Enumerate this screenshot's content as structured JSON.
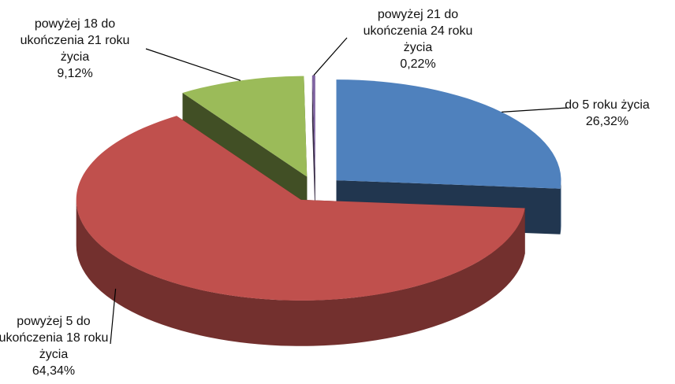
{
  "chart_data": {
    "type": "pie3d",
    "categories": [
      "do 5 roku życia",
      "powyżej 5 do ukończenia 18 roku życia",
      "powyżej 18 do ukończenia 21 roku życia",
      "powyżej 21 do ukończenia 24 roku życia"
    ],
    "values": [
      26.32,
      64.34,
      9.12,
      0.22
    ],
    "value_labels": [
      "26,32%",
      "64,34%",
      "9,12%",
      "0,22%"
    ],
    "colors": [
      "#4f81bd",
      "#c0504d",
      "#9bbb59",
      "#8064a2"
    ]
  }
}
